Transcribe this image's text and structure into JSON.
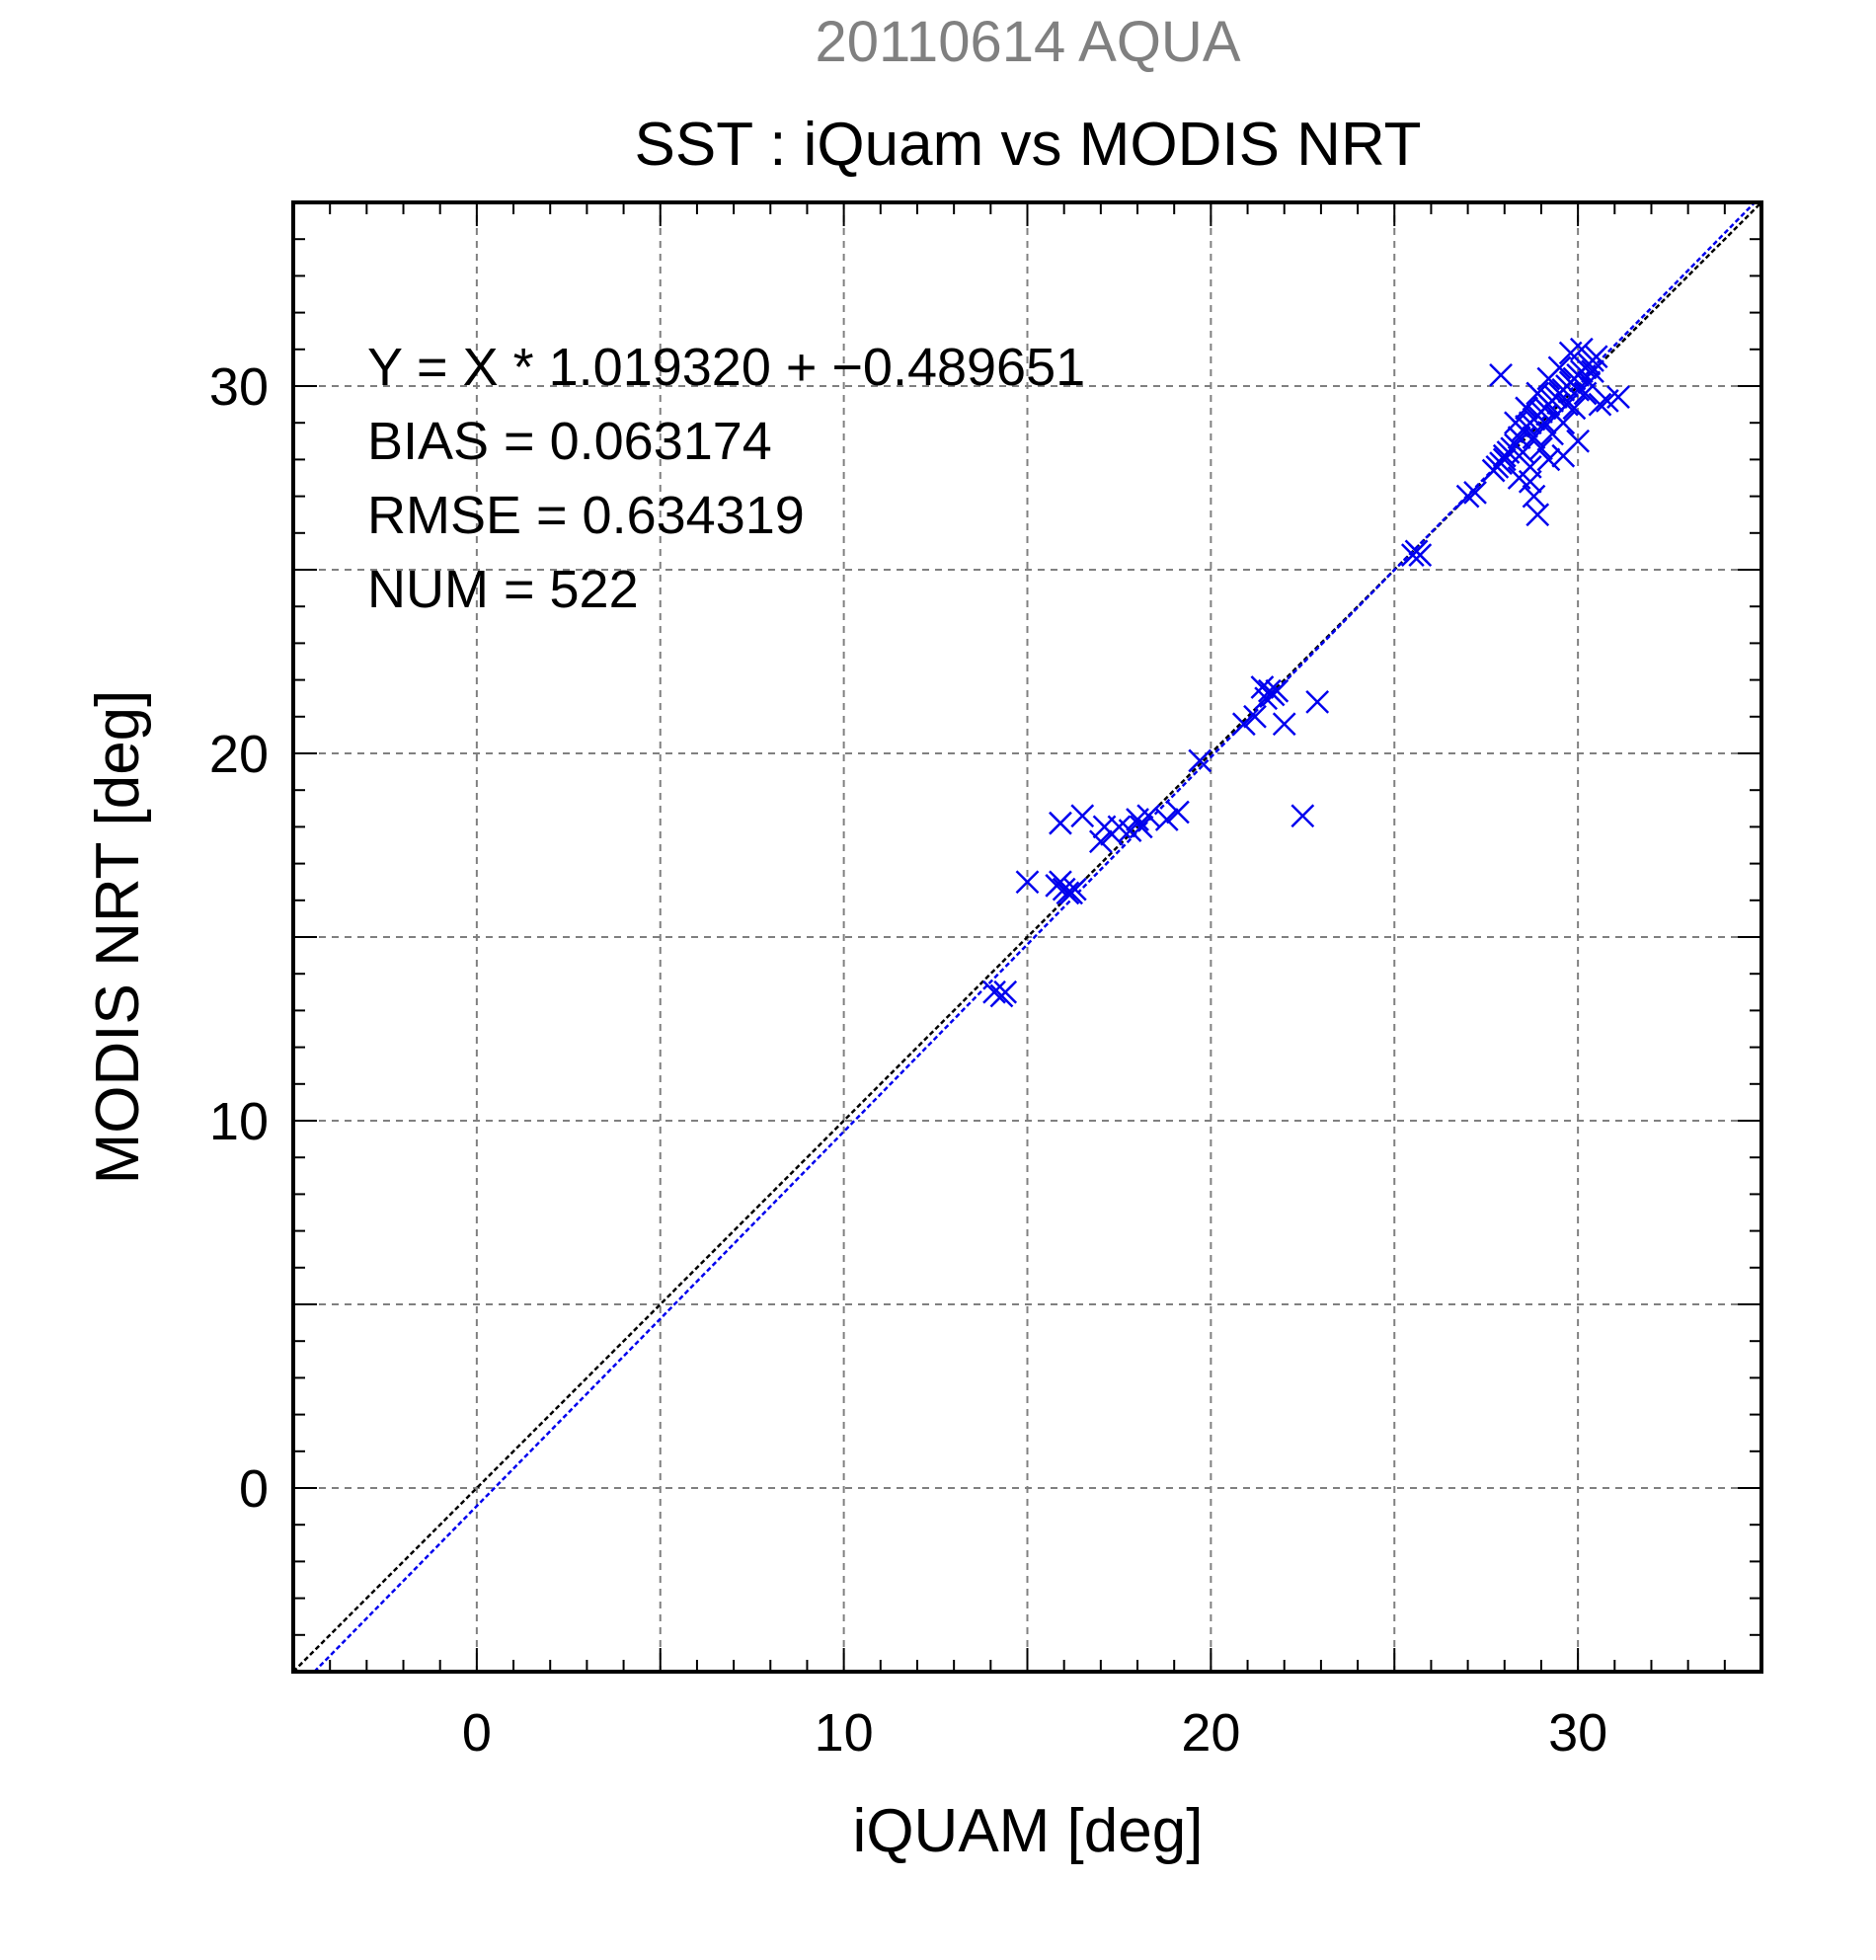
{
  "chart_data": {
    "type": "scatter",
    "date_title": "20110614 AQUA",
    "title": "SST : iQuam vs MODIS NRT",
    "xlabel": "iQUAM [deg]",
    "ylabel": "MODIS NRT [deg]",
    "xlim": [
      -5,
      35
    ],
    "ylim": [
      -5,
      35
    ],
    "x_ticks": [
      0,
      10,
      20,
      30
    ],
    "y_ticks": [
      0,
      10,
      20,
      30
    ],
    "x_tick_labels": [
      "0",
      "10",
      "20",
      "30"
    ],
    "y_tick_labels": [
      "0",
      "10",
      "20",
      "30"
    ],
    "grid": true,
    "grid_step": 5,
    "minor_tick_step": 1,
    "stats": {
      "equation": "Y = X * 1.019320 + −0.489651",
      "bias": "BIAS = 0.063174",
      "rmse": "RMSE = 0.634319",
      "num": "NUM = 522"
    },
    "fit_line": {
      "slope": 1.01932,
      "intercept": -0.489651,
      "color": "#0000ee"
    },
    "identity_line": {
      "slope": 1,
      "intercept": 0,
      "color": "#000000"
    },
    "marker": "x",
    "marker_color": "#0000ee",
    "series": [
      {
        "x": [
          14.1,
          14.3,
          14.4,
          15.0,
          15.8,
          16.0,
          16.1,
          15.9,
          16.2,
          16.3,
          15.9,
          16.5,
          17.0,
          17.1,
          17.3,
          17.5,
          17.8,
          18.0,
          18.1,
          18.3,
          18.8,
          19.1,
          19.7,
          20.9,
          21.2,
          21.4,
          21.5,
          21.6,
          21.7,
          21.8,
          22.0,
          22.5,
          22.9,
          25.5,
          25.6,
          25.7,
          27.0,
          27.2,
          27.7,
          27.8,
          27.9,
          28.0,
          28.1,
          28.2,
          28.3,
          28.4,
          28.5,
          28.6,
          28.7,
          28.8,
          28.9,
          29.0,
          29.1,
          29.2,
          29.3,
          29.4,
          29.5,
          29.6,
          29.7,
          29.8,
          29.9,
          30.0,
          30.1,
          30.2,
          30.3,
          30.4,
          30.5,
          28.3,
          28.6,
          28.9,
          29.2,
          29.5,
          29.8,
          30.1,
          30.4,
          28.5,
          28.8,
          29.1,
          29.4,
          29.7,
          30.0,
          30.3,
          28.7,
          29.0,
          29.3,
          29.6,
          29.9,
          30.2,
          28.7,
          28.8,
          28.9,
          29.2,
          29.6,
          30.0,
          30.6,
          30.8,
          31.1,
          27.9,
          28.0,
          28.4
        ],
        "y": [
          13.5,
          13.4,
          13.5,
          16.5,
          16.4,
          16.3,
          16.2,
          18.1,
          16.2,
          16.3,
          16.5,
          18.3,
          17.6,
          18.0,
          17.8,
          18.0,
          17.9,
          18.2,
          18.0,
          18.3,
          18.2,
          18.4,
          19.8,
          20.8,
          21.0,
          21.8,
          21.5,
          21.7,
          21.6,
          21.7,
          20.8,
          18.3,
          21.4,
          25.4,
          25.5,
          25.4,
          27.0,
          27.1,
          27.7,
          27.8,
          27.9,
          28.1,
          28.2,
          28.3,
          28.4,
          28.6,
          28.8,
          28.9,
          29.0,
          29.1,
          29.2,
          29.3,
          29.4,
          29.5,
          29.6,
          29.7,
          29.8,
          29.9,
          30.0,
          30.1,
          30.2,
          30.3,
          30.4,
          30.5,
          30.6,
          30.7,
          30.8,
          29.0,
          29.4,
          29.8,
          30.2,
          30.5,
          30.9,
          31.0,
          30.4,
          28.2,
          28.6,
          29.0,
          29.2,
          29.5,
          29.9,
          30.1,
          27.8,
          28.3,
          28.7,
          29.0,
          29.4,
          29.8,
          27.4,
          27.0,
          26.5,
          28.0,
          28.1,
          28.5,
          29.5,
          29.6,
          29.7,
          30.3,
          28.0,
          27.5
        ]
      }
    ]
  }
}
